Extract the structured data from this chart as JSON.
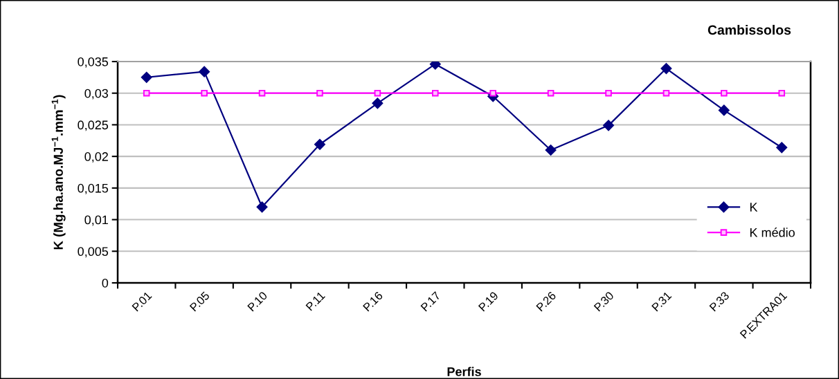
{
  "chart_data": {
    "type": "line",
    "title": "Cambissolos",
    "xlabel": "Perfis",
    "ylabel": "K (Mg.ha.ano.MJ$^{−1}$.mm$^{−1}$)",
    "categories": [
      "P.01",
      "P.05",
      "P.10",
      "P.11",
      "P.16",
      "P.17",
      "P.19",
      "P.26",
      "P.30",
      "P.31",
      "P.33",
      "P.EXTRA01"
    ],
    "series": [
      {
        "name": "K",
        "color": "#000080",
        "marker": "diamond",
        "values": [
          0.0325,
          0.0334,
          0.012,
          0.0219,
          0.0284,
          0.0346,
          0.0295,
          0.021,
          0.0249,
          0.0339,
          0.0273,
          0.0214
        ]
      },
      {
        "name": "K médio",
        "color": "#ff00ff",
        "marker": "square",
        "values": [
          0.03,
          0.03,
          0.03,
          0.03,
          0.03,
          0.03,
          0.03,
          0.03,
          0.03,
          0.03,
          0.03,
          0.03
        ]
      }
    ],
    "ylim": [
      0,
      0.035
    ],
    "yticks": [
      0,
      {
        "value": 0.005,
        "label": "0,005"
      },
      {
        "value": 0.01,
        "label": "0,01"
      },
      {
        "value": 0.015,
        "label": "0,015"
      },
      {
        "value": 0.02,
        "label": "0,02"
      },
      {
        "value": 0.025,
        "label": "0,025"
      },
      {
        "value": 0.03,
        "label": "0,03"
      },
      {
        "value": 0.035,
        "label": "0,035"
      }
    ],
    "grid": "y",
    "legend": "right",
    "line_style": "solid"
  }
}
